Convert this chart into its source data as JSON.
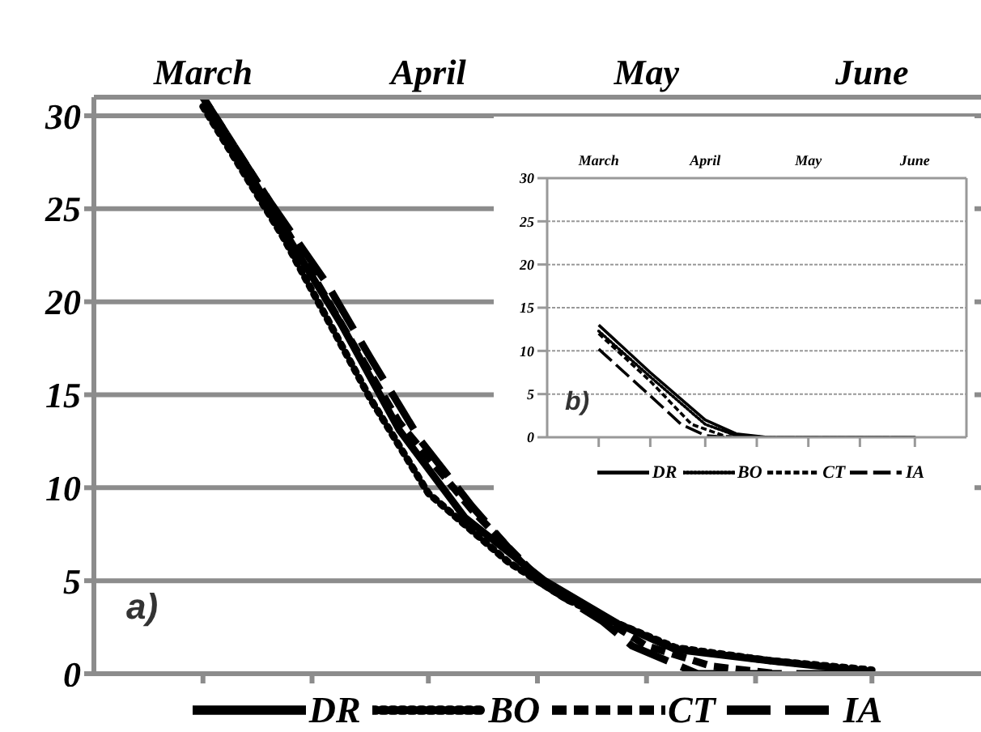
{
  "chart_data": [
    {
      "type": "line",
      "annotations": [
        "a)"
      ],
      "xlim": [
        "--02-14",
        "--06-16"
      ],
      "xticks": [
        {
          "value": "--03-01",
          "label": "March"
        },
        {
          "value": "--03-16",
          "label": null
        },
        {
          "value": "--04-01",
          "label": "April"
        },
        {
          "value": "--04-16",
          "label": null
        },
        {
          "value": "--05-01",
          "label": "May"
        },
        {
          "value": "--05-16",
          "label": null
        },
        {
          "value": "--06-01",
          "label": "June"
        }
      ],
      "ylim": [
        0,
        31
      ],
      "yticks": [
        0,
        5,
        10,
        15,
        20,
        25,
        30
      ],
      "grid": "y",
      "legend": "bottom",
      "series": [
        {
          "name": "DR",
          "color": "#000000",
          "line_style": "solid",
          "x": [
            "--03-01",
            "--03-10",
            "--03-20",
            "--03-28",
            "--04-06",
            "--04-17",
            "--04-27",
            "--05-05",
            "--05-18",
            "--06-01"
          ],
          "values": [
            31,
            25.2,
            18.8,
            13.1,
            8.4,
            5,
            2.7,
            1.3,
            0.7,
            0.1
          ]
        },
        {
          "name": "BO",
          "color": "#000000",
          "line_style": "dotted",
          "x": [
            "--03-01",
            "--03-12",
            "--03-24",
            "--04-01",
            "--04-12",
            "--04-20",
            "--04-27",
            "--05-05",
            "--05-18",
            "--06-01"
          ],
          "values": [
            30.5,
            23.5,
            14.8,
            9.7,
            6,
            4,
            2.7,
            1.4,
            0.7,
            0.2
          ]
        },
        {
          "name": "CT",
          "color": "#000000",
          "line_style": "dashed",
          "x": [
            "--03-01",
            "--03-10",
            "--03-19",
            "--03-28",
            "--04-07",
            "--04-16",
            "--04-24",
            "--05-01",
            "--05-10",
            "--05-19"
          ],
          "values": [
            31,
            25.5,
            19.5,
            13.5,
            8.8,
            5.2,
            3.2,
            1.5,
            0.4,
            0
          ]
        },
        {
          "name": "IA",
          "color": "#000000",
          "line_style": "dashed",
          "x": [
            "--03-01",
            "--03-10",
            "--03-18",
            "--03-24",
            "--03-31",
            "--04-07",
            "--04-16",
            "--04-25",
            "--04-29",
            "--05-08",
            "--06-01"
          ],
          "values": [
            31,
            25.5,
            21,
            17,
            12.5,
            9,
            5,
            2.8,
            1.5,
            0,
            0
          ]
        }
      ]
    },
    {
      "type": "line",
      "annotations": [
        "b)"
      ],
      "xlim": [
        "--02-14",
        "--06-16"
      ],
      "xticks": [
        {
          "value": "--03-01",
          "label": "March"
        },
        {
          "value": "--03-16",
          "label": null
        },
        {
          "value": "--04-01",
          "label": "April"
        },
        {
          "value": "--04-16",
          "label": null
        },
        {
          "value": "--05-01",
          "label": "May"
        },
        {
          "value": "--05-16",
          "label": null
        },
        {
          "value": "--06-01",
          "label": "June"
        }
      ],
      "ylim": [
        0,
        30
      ],
      "yticks": [
        0,
        5,
        10,
        15,
        20,
        25,
        30
      ],
      "grid": "y",
      "legend": "bottom",
      "series": [
        {
          "name": "DR",
          "color": "#000000",
          "line_style": "solid",
          "x": [
            "--03-01",
            "--03-16",
            "--04-01",
            "--04-10",
            "--04-19",
            "--06-01"
          ],
          "values": [
            13,
            7.5,
            2,
            0.4,
            0,
            0
          ]
        },
        {
          "name": "BO",
          "color": "#000000",
          "line_style": "dotted",
          "x": [
            "--03-01",
            "--03-16",
            "--04-01",
            "--04-10",
            "--04-19",
            "--06-01"
          ],
          "values": [
            12.3,
            7,
            1.5,
            0.2,
            0,
            0
          ]
        },
        {
          "name": "CT",
          "color": "#000000",
          "line_style": "dashed",
          "x": [
            "--03-01",
            "--03-16",
            "--03-28",
            "--04-07",
            "--04-16",
            "--06-01"
          ],
          "values": [
            12,
            6.5,
            1.5,
            0.1,
            0,
            0
          ]
        },
        {
          "name": "IA",
          "color": "#000000",
          "line_style": "dashed",
          "x": [
            "--03-01",
            "--03-16",
            "--03-25",
            "--04-01",
            "--04-07",
            "--06-01"
          ],
          "values": [
            10.2,
            4.8,
            1.5,
            0.2,
            0,
            0
          ]
        }
      ]
    }
  ]
}
